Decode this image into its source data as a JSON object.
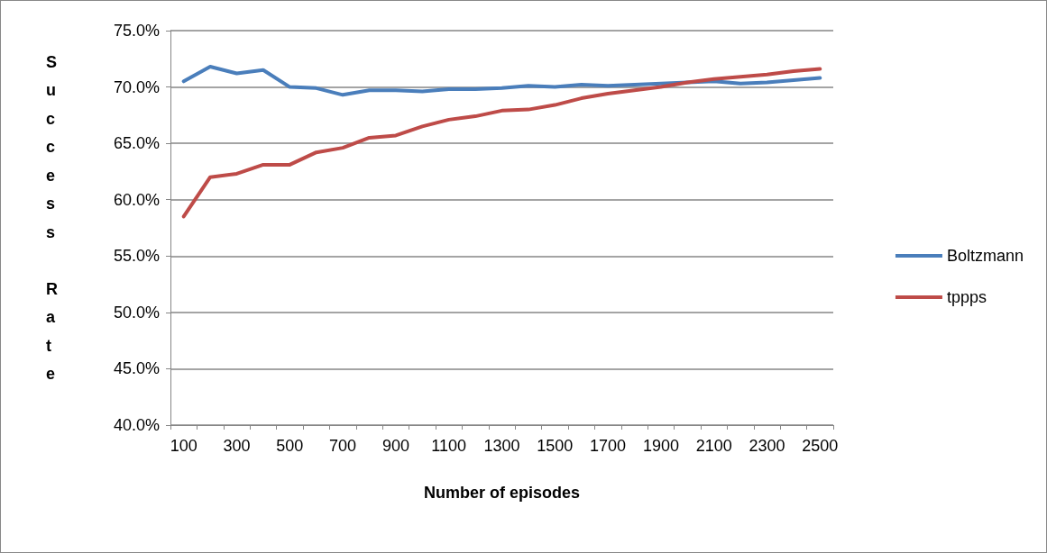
{
  "chart_data": {
    "type": "line",
    "xlabel": "Number of episodes",
    "ylabel": "Success Rate",
    "categories": [
      "100",
      null,
      "300",
      null,
      "500",
      null,
      "700",
      null,
      "900",
      null,
      "1100",
      null,
      "1300",
      null,
      "1500",
      null,
      "1700",
      null,
      "1900",
      null,
      "2100",
      null,
      "2300",
      null,
      "2500"
    ],
    "series": [
      {
        "name": "Boltzmann",
        "color": "#4a7ebb",
        "values": [
          70.5,
          71.8,
          71.2,
          71.5,
          70.0,
          69.9,
          69.3,
          69.7,
          69.7,
          69.6,
          69.8,
          69.8,
          69.9,
          70.1,
          70.0,
          70.2,
          70.1,
          70.2,
          70.3,
          70.4,
          70.5,
          70.3,
          70.4,
          70.6,
          70.8
        ]
      },
      {
        "name": "tppps",
        "color": "#be4b48",
        "values": [
          58.5,
          62.0,
          62.3,
          63.1,
          63.1,
          64.2,
          64.6,
          65.5,
          65.7,
          66.5,
          67.1,
          67.4,
          67.9,
          68.0,
          68.4,
          69.0,
          69.4,
          69.7,
          70.0,
          70.4,
          70.7,
          70.9,
          71.1,
          71.4,
          71.6
        ]
      }
    ],
    "ylim": [
      40,
      75
    ],
    "yticks": [
      {
        "value": 40,
        "label": "40.0%"
      },
      {
        "value": 45,
        "label": "45.0%"
      },
      {
        "value": 50,
        "label": "50.0%"
      },
      {
        "value": 55,
        "label": "55.0%"
      },
      {
        "value": 60,
        "label": "60.0%"
      },
      {
        "value": 65,
        "label": "65.0%"
      },
      {
        "value": 70,
        "label": "70.0%"
      },
      {
        "value": 75,
        "label": "75.0%"
      }
    ],
    "grid": "y",
    "legend": "right",
    "marker": "none",
    "line_style": "solid"
  }
}
